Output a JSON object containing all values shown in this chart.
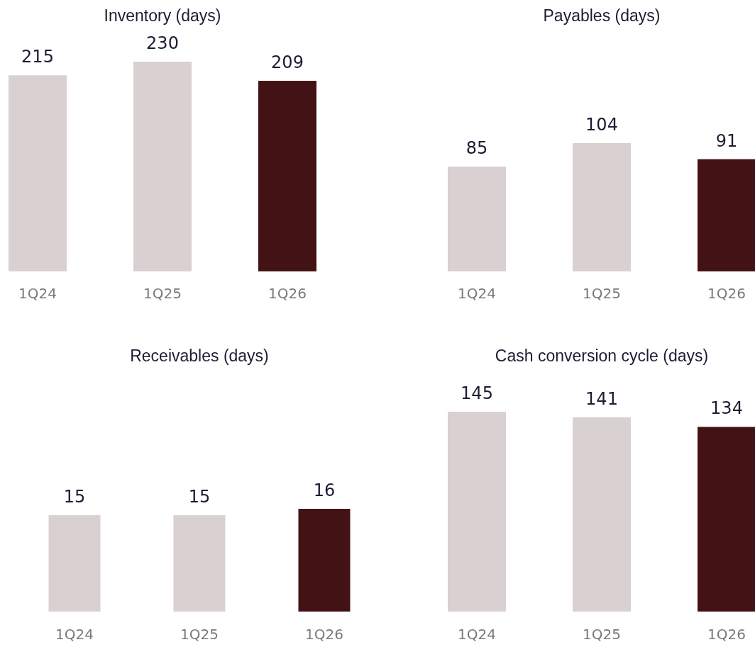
{
  "chart_data": [
    {
      "type": "bar",
      "title": "Inventory (days)",
      "categories": [
        "1Q24",
        "1Q25",
        "1Q26"
      ],
      "values": [
        215,
        230,
        209
      ],
      "colors": [
        "#d9d0d1",
        "#d9d0d1",
        "#431215"
      ],
      "data_labels": true,
      "tick_labels": "x"
    },
    {
      "type": "bar",
      "title": "Payables (days)",
      "categories": [
        "1Q24",
        "1Q25",
        "1Q26"
      ],
      "values": [
        85,
        104,
        91
      ],
      "colors": [
        "#d9d0d1",
        "#d9d0d1",
        "#431215"
      ],
      "data_labels": true,
      "tick_labels": "x"
    },
    {
      "type": "bar",
      "title": "Receivables (days)",
      "categories": [
        "1Q24",
        "1Q25",
        "1Q26"
      ],
      "values": [
        15,
        15,
        16
      ],
      "colors": [
        "#d9d0d1",
        "#d9d0d1",
        "#431215"
      ],
      "data_labels": true,
      "tick_labels": "x"
    },
    {
      "type": "bar",
      "title": "Cash conversion cycle (days)",
      "categories": [
        "1Q24",
        "1Q25",
        "1Q26"
      ],
      "values": [
        145,
        141,
        134
      ],
      "colors": [
        "#d9d0d1",
        "#d9d0d1",
        "#431215"
      ],
      "data_labels": true,
      "tick_labels": "x"
    }
  ]
}
